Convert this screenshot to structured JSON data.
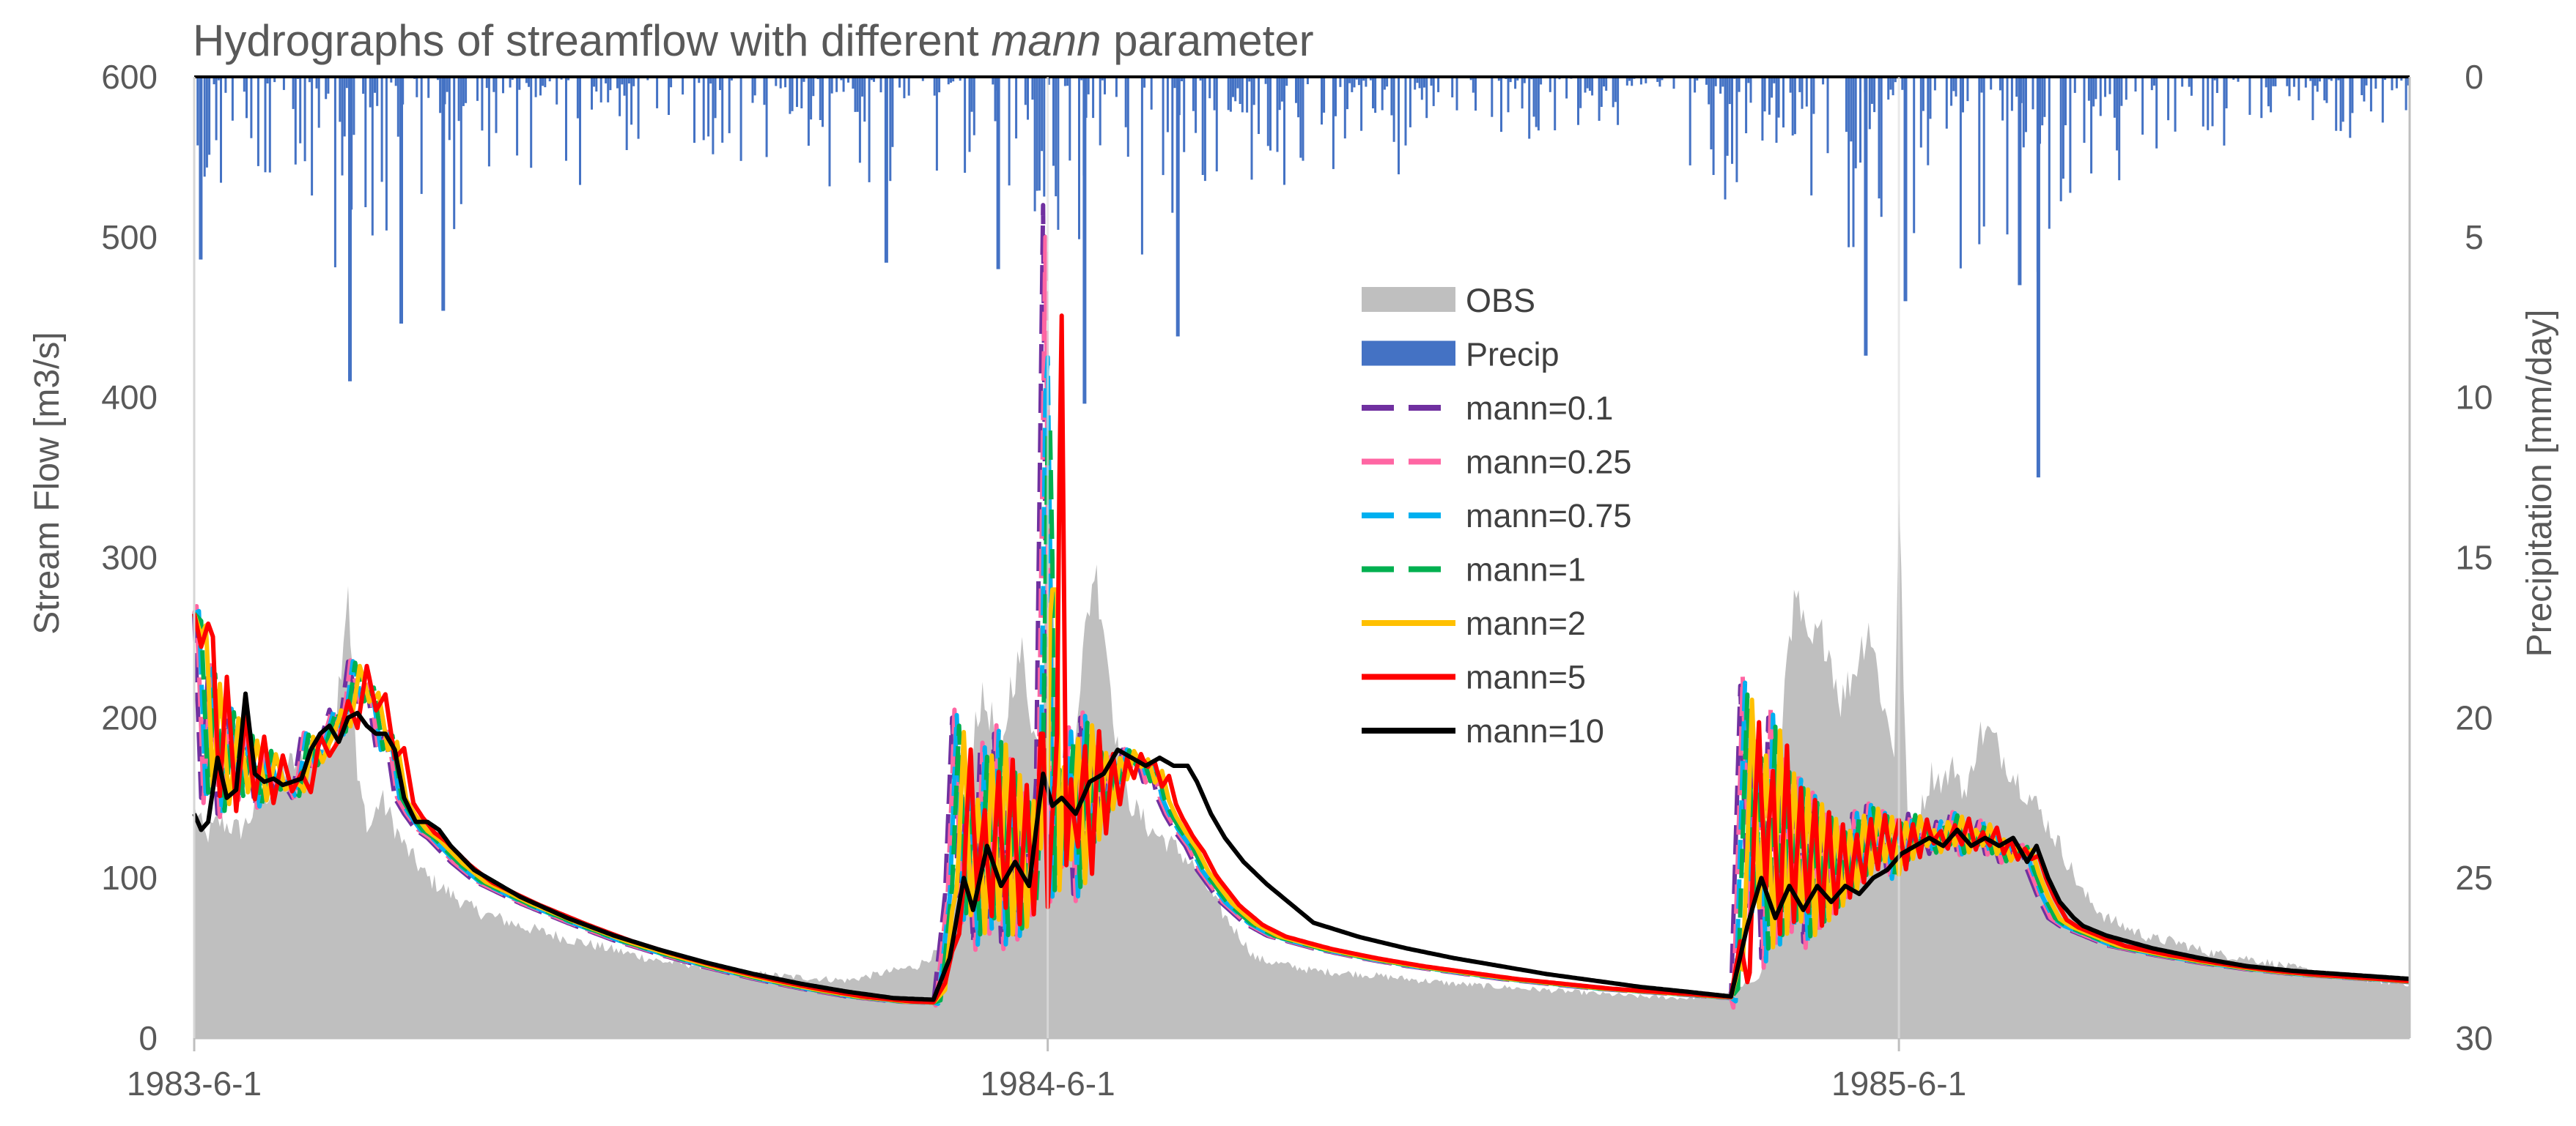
{
  "chart_data": {
    "type": "line",
    "title_prefix": "Hydrographs of streamflow with different ",
    "title_italic": "mann",
    "title_suffix": " parameter",
    "ylabel": "Stream Flow [m3/s]",
    "y2label": "Precipitation [mm/day]",
    "ylim": [
      0,
      600
    ],
    "y2lim": [
      0,
      30
    ],
    "y2_inverted": true,
    "yticks": [
      0,
      100,
      200,
      300,
      400,
      500,
      600
    ],
    "y2ticks": [
      0,
      5,
      10,
      15,
      20,
      25,
      30
    ],
    "x_start": "1983-6-1",
    "x_end": "1986-3-31",
    "x_total_days": 950,
    "xticks": [
      {
        "label": "1983-6-1",
        "day": 0
      },
      {
        "label": "1984-6-1",
        "day": 366
      },
      {
        "label": "1985-6-1",
        "day": 731
      }
    ],
    "legend_position": "center",
    "legend": [
      "OBS",
      "Precip",
      "mann=0.1",
      "mann=0.25",
      "mann=0.75",
      "mann=1",
      "mann=2",
      "mann=5",
      "mann=10"
    ],
    "colors": {
      "obs": "#bfbfbf",
      "precip": "#4472c4",
      "mann_0_1": "#7030a0",
      "mann_0_25": "#ff66a3",
      "mann_0_75": "#00b0f0",
      "mann_1": "#00b050",
      "mann_2": "#ffc000",
      "mann_5": "#ff0000",
      "mann_10": "#000000",
      "axis": "#bfbfbf"
    },
    "obs": {
      "days": [
        0,
        5,
        10,
        20,
        30,
        40,
        50,
        60,
        66,
        70,
        75,
        80,
        90,
        100,
        110,
        120,
        140,
        160,
        180,
        200,
        220,
        240,
        260,
        280,
        300,
        310,
        320,
        330,
        335,
        338,
        342,
        346,
        350,
        355,
        360,
        364,
        366,
        370,
        375,
        378,
        382,
        386,
        390,
        396,
        400,
        410,
        420,
        430,
        440,
        450,
        455,
        460,
        470,
        480,
        500,
        520,
        540,
        560,
        580,
        600,
        620,
        640,
        660,
        672,
        676,
        680,
        684,
        688,
        692,
        696,
        700,
        706,
        712,
        718,
        724,
        729,
        731,
        735,
        740,
        745,
        750,
        755,
        760,
        765,
        770,
        780,
        790,
        800,
        810,
        820,
        830,
        840,
        850,
        860,
        870,
        880,
        890,
        900,
        910,
        920,
        930,
        940,
        950
      ],
      "values": [
        145,
        125,
        135,
        130,
        150,
        170,
        175,
        190,
        285,
        160,
        130,
        150,
        120,
        100,
        90,
        80,
        70,
        62,
        55,
        48,
        45,
        40,
        38,
        36,
        42,
        45,
        55,
        120,
        200,
        210,
        200,
        170,
        220,
        240,
        190,
        175,
        485,
        150,
        130,
        200,
        250,
        295,
        260,
        180,
        150,
        130,
        120,
        105,
        80,
        60,
        50,
        48,
        45,
        42,
        40,
        37,
        34,
        32,
        30,
        28,
        26,
        25,
        28,
        40,
        90,
        180,
        260,
        270,
        240,
        250,
        250,
        210,
        230,
        260,
        210,
        180,
        335,
        120,
        140,
        165,
        160,
        170,
        150,
        190,
        190,
        165,
        145,
        120,
        90,
        75,
        68,
        62,
        60,
        55,
        52,
        50,
        47,
        44,
        41,
        39,
        37,
        35,
        34
      ]
    },
    "precip": {
      "scatter": [
        {
          "start": 0,
          "end": 115,
          "max": 6.5
        },
        {
          "start": 115,
          "end": 260,
          "max": 3.5
        },
        {
          "start": 260,
          "end": 330,
          "max": 4
        },
        {
          "start": 330,
          "end": 420,
          "max": 7
        },
        {
          "start": 420,
          "end": 520,
          "max": 4
        },
        {
          "start": 520,
          "end": 640,
          "max": 2.5
        },
        {
          "start": 640,
          "end": 700,
          "max": 4
        },
        {
          "start": 700,
          "end": 830,
          "max": 7
        },
        {
          "start": 830,
          "end": 950,
          "max": 3
        }
      ],
      "spikes": [
        {
          "day": 2,
          "value": 5.7
        },
        {
          "day": 66,
          "value": 9.5
        },
        {
          "day": 88,
          "value": 7.7
        },
        {
          "day": 106,
          "value": 7.3
        },
        {
          "day": 296,
          "value": 5.8
        },
        {
          "day": 344,
          "value": 6
        },
        {
          "day": 381,
          "value": 10.2
        },
        {
          "day": 421,
          "value": 8.1
        },
        {
          "day": 716,
          "value": 8.7
        },
        {
          "day": 733,
          "value": 7
        },
        {
          "day": 782,
          "value": 6.5
        },
        {
          "day": 790,
          "value": 12.5
        }
      ]
    },
    "series": [
      {
        "name": "mann=0.1",
        "dashed": true,
        "lag": 0,
        "amp": 1.2,
        "peak_extra": 0,
        "days": [
          0,
          3,
          6,
          10,
          14,
          18,
          22,
          26,
          30,
          34,
          38,
          42,
          46,
          50,
          54,
          58,
          62,
          66,
          70,
          74,
          78,
          82,
          86,
          90,
          95,
          100,
          110,
          120,
          140,
          160,
          180,
          200,
          220,
          240,
          260,
          280,
          300,
          317,
          322,
          325,
          328,
          331,
          334,
          337,
          340,
          343,
          346,
          349,
          352,
          355,
          358,
          361,
          364,
          366,
          368,
          371,
          374,
          377,
          380,
          383,
          386,
          389,
          392,
          395,
          398,
          401,
          404,
          407,
          410,
          413,
          416,
          420,
          425,
          430,
          435,
          440,
          450,
          460,
          480,
          500,
          520,
          540,
          560,
          580,
          600,
          620,
          640,
          659,
          663,
          666,
          669,
          672,
          675,
          678,
          681,
          684,
          687,
          690,
          693,
          696,
          699,
          702,
          705,
          708,
          711,
          714,
          717,
          720,
          723,
          726,
          729,
          732,
          735,
          738,
          741,
          744,
          747,
          750,
          753,
          756,
          759,
          762,
          765,
          768,
          771,
          774,
          777,
          780,
          783,
          786,
          790,
          795,
          800,
          810,
          820,
          840,
          860,
          880,
          900,
          920,
          940,
          950
        ],
        "values": [
          265,
          150,
          230,
          140,
          205,
          150,
          190,
          145,
          180,
          155,
          160,
          150,
          190,
          170,
          185,
          205,
          190,
          235,
          210,
          220,
          180,
          190,
          150,
          140,
          130,
          125,
          110,
          98,
          84,
          72,
          61,
          52,
          44,
          37,
          31,
          26,
          23,
          22,
          90,
          200,
          75,
          150,
          60,
          180,
          70,
          190,
          60,
          170,
          65,
          150,
          80,
          160,
          520,
          90,
          170,
          110,
          190,
          90,
          200,
          120,
          180,
          140,
          175,
          160,
          180,
          170,
          175,
          160,
          170,
          150,
          140,
          130,
          120,
          105,
          95,
          85,
          72,
          64,
          56,
          50,
          45,
          41,
          37,
          34,
          31,
          29,
          27,
          25,
          220,
          80,
          180,
          50,
          200,
          60,
          170,
          70,
          160,
          60,
          150,
          70,
          140,
          80,
          130,
          90,
          140,
          100,
          145,
          110,
          140,
          100,
          135,
          110,
          140,
          120,
          130,
          115,
          135,
          120,
          140,
          115,
          130,
          120,
          135,
          115,
          125,
          110,
          120,
          115,
          120,
          105,
          90,
          75,
          70,
          64,
          58,
          52,
          47,
          43,
          40,
          38,
          36,
          35
        ]
      },
      {
        "name": "mann=0.25",
        "dashed": true,
        "lag": 1,
        "amp": 1.12,
        "peak_extra": -20
      },
      {
        "name": "mann=0.75",
        "dashed": true,
        "lag": 2,
        "amp": 1.02,
        "peak_extra": -95
      },
      {
        "name": "mann=1",
        "dashed": true,
        "lag": 3,
        "amp": 0.96,
        "peak_extra": -140
      },
      {
        "name": "mann=2",
        "dashed": false,
        "lag": 5,
        "amp": 0.88,
        "peak_extra": -240
      },
      {
        "name": "mann=5",
        "dashed": false,
        "lag": 8,
        "amp": 0.82,
        "peak_extra": -330
      },
      {
        "name": "mann=10",
        "dashed": false,
        "lag": 0,
        "amp": 1,
        "peak_extra": 0,
        "days": [
          0,
          3,
          6,
          10,
          14,
          18,
          22,
          26,
          30,
          34,
          38,
          42,
          46,
          50,
          54,
          58,
          62,
          66,
          70,
          74,
          78,
          82,
          86,
          90,
          95,
          100,
          105,
          110,
          120,
          140,
          160,
          180,
          200,
          220,
          240,
          260,
          280,
          300,
          317,
          324,
          330,
          334,
          340,
          346,
          352,
          358,
          364,
          368,
          372,
          378,
          384,
          390,
          396,
          402,
          408,
          414,
          420,
          426,
          430,
          436,
          442,
          450,
          460,
          480,
          500,
          520,
          540,
          560,
          580,
          600,
          620,
          640,
          659,
          666,
          672,
          678,
          684,
          690,
          696,
          702,
          708,
          714,
          720,
          726,
          732,
          738,
          744,
          750,
          756,
          762,
          768,
          774,
          780,
          786,
          790,
          795,
          800,
          806,
          810,
          820,
          840,
          860,
          880,
          900,
          920,
          940,
          950
        ],
        "values": [
          140,
          130,
          135,
          175,
          150,
          155,
          215,
          165,
          160,
          162,
          158,
          160,
          162,
          180,
          190,
          195,
          185,
          200,
          203,
          195,
          190,
          190,
          180,
          150,
          135,
          135,
          130,
          120,
          105,
          88,
          75,
          64,
          55,
          47,
          40,
          34,
          29,
          25,
          24,
          50,
          100,
          80,
          120,
          95,
          110,
          95,
          165,
          145,
          150,
          140,
          160,
          165,
          180,
          175,
          170,
          175,
          170,
          170,
          160,
          140,
          125,
          110,
          96,
          72,
          63,
          56,
          50,
          45,
          40,
          36,
          32,
          29,
          26,
          70,
          100,
          75,
          95,
          80,
          95,
          85,
          95,
          90,
          100,
          105,
          115,
          120,
          125,
          120,
          130,
          120,
          125,
          120,
          125,
          110,
          120,
          100,
          85,
          75,
          70,
          64,
          56,
          50,
          45,
          42,
          40,
          38,
          37
        ]
      }
    ]
  }
}
